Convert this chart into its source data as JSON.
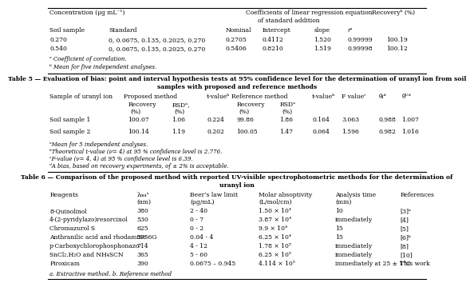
{
  "bg_color": "#ffffff",
  "table4_rows": [
    [
      "0.270",
      "0, 0.0675, 0.135, 0.2025, 0.270",
      "0.2705",
      "0.4112",
      "1.520",
      "0.99999",
      "100.19"
    ],
    [
      "0.540",
      "0, 0.0675, 0.135, 0.2025, 0.270",
      "0.5406",
      "0.8210",
      "1.519",
      "0.99998",
      "100.12"
    ]
  ],
  "table4_footnotes": [
    "ᵃ Coefficient of correlation.",
    "ᵇ Mean for five independent analyses."
  ],
  "table5_title1": "Table 5 — Evaluation of bias: point and interval hypothesis tests at 95% confidence level for the determination of uranyl ion from soil",
  "table5_title2": "samples with proposed and reference methods",
  "table5_rows": [
    [
      "Soil sample 1",
      "100.07",
      "1.06",
      "0.224",
      "99.86",
      "1.86",
      "0.164",
      "3.063",
      "0.988",
      "1.007"
    ],
    [
      "Soil sample 2",
      "100.14",
      "1.19",
      "0.202",
      "100.05",
      "1.47",
      "0.064",
      "1.596",
      "0.982",
      "1.016"
    ]
  ],
  "table5_footnotes": [
    "ᵃMean for 5 independent analyses.",
    "ᵇTheoretical t-value (ν= 4) at 95 % confidence level is 2.776.",
    "ᶜF-value (ν= 4, 4) at 95 % confidence level is 6.39.",
    "ᵈA bias, based on recovery experiments, of ± 2% is acceptable."
  ],
  "table6_title1": "Table 6 — Comparison of the proposed method with reported UV-visible spectrophotometric methods for the determination of",
  "table6_title2": "uranyl ion",
  "table6_rows": [
    [
      "8-Quinolinol",
      "380",
      "2 - 40",
      "1.50 × 10⁴",
      "10",
      "[3]ᵃ"
    ],
    [
      "4-(2-pyridylazo)resorcinol",
      "530",
      "0 - 7",
      "3.87 × 10⁴",
      "immediately",
      "[4]"
    ],
    [
      "Chromazurol S",
      "625",
      "0 - 2",
      "9.9 × 10⁴",
      "15",
      "[5]"
    ],
    [
      "Anthranilic acid and rhodamine 6G",
      "575",
      "0.04 - 4",
      "6.25 × 10⁴",
      "15",
      "[6]ᵇ"
    ],
    [
      "p-Carboxychlorophosphonazo",
      "714",
      "4 - 12",
      "1.78 × 10⁵",
      "immediately",
      "[8]"
    ],
    [
      "SnCl₂.H₂O and NH₄SCN",
      "365",
      "5 - 60",
      "6.25 × 10⁵",
      "immediately",
      "[10]"
    ],
    [
      "Piroxicam",
      "390",
      "0.0675 – 0.945",
      "4.114 × 10⁵",
      "immediately at 25 ± 1°C",
      "This work"
    ]
  ],
  "table6_footnote": "a. Extractive method. b. Reference method"
}
